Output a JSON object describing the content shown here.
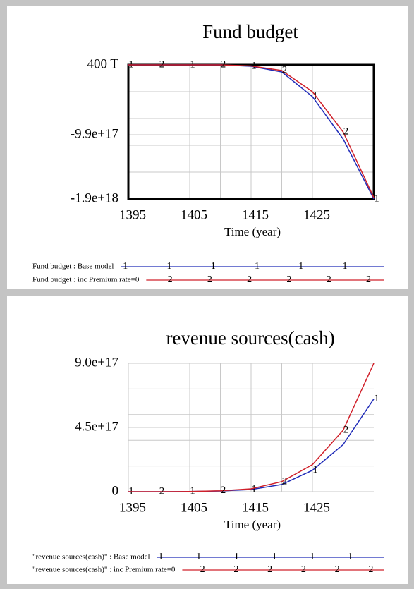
{
  "chart_data": [
    {
      "type": "line",
      "title": "Fund budget",
      "x_label": "Time (year)",
      "x": [
        1395,
        1400,
        1405,
        1410,
        1415,
        1420,
        1425,
        1430,
        1435
      ],
      "xlim": [
        1395,
        1435
      ],
      "xticks": [
        1395,
        1405,
        1415,
        1425
      ],
      "ylim": [
        -1.9e+18,
        400000000000000
      ],
      "yticks": [
        {
          "value": 400000000000000,
          "label": "400 T"
        },
        {
          "value": -9.9e+17,
          "label": "-9.9e+17"
        },
        {
          "value": -1.9e+18,
          "label": "-1.9e+18"
        }
      ],
      "grid": true,
      "frame": true,
      "series": [
        {
          "name": "Fund budget : Base model",
          "marker": "1",
          "color": "#1f2bb8",
          "values": [
            400000000000000,
            400000000000000,
            300000000000000,
            0,
            -20000000000000000,
            -100000000000000000,
            -450000000000000000,
            -1.05e+18,
            -1.9e+18
          ]
        },
        {
          "name": "Fund budget : inc Premium rate=0",
          "marker": "2",
          "color": "#d0202a",
          "values": [
            400000000000000,
            400000000000000,
            300000000000000,
            0,
            -15000000000000000,
            -80000000000000000,
            -380000000000000000,
            -9.5e+17,
            -1.88e+18
          ]
        }
      ]
    },
    {
      "type": "line",
      "title": "revenue sources(cash)",
      "x_label": "Time (year)",
      "x": [
        1395,
        1400,
        1405,
        1410,
        1415,
        1420,
        1425,
        1430,
        1435
      ],
      "xlim": [
        1395,
        1435
      ],
      "xticks": [
        1395,
        1405,
        1415,
        1425
      ],
      "ylim": [
        0,
        9e+17
      ],
      "yticks": [
        {
          "value": 9e+17,
          "label": "9.0e+17"
        },
        {
          "value": 4.5e+17,
          "label": "4.5e+17"
        },
        0
      ],
      "grid": true,
      "frame": false,
      "series": [
        {
          "name": "\"revenue sources(cash)\" : Base model",
          "marker": "1",
          "color": "#1f2bb8",
          "values": [
            0,
            0,
            1000000000000000,
            5000000000000000,
            15000000000000000,
            50000000000000000,
            150000000000000000,
            330000000000000000,
            650000000000000000
          ]
        },
        {
          "name": "\"revenue sources(cash)\" : inc Premium rate=0",
          "marker": "2",
          "color": "#d0202a",
          "values": [
            0,
            0,
            1000000000000000,
            6000000000000000,
            20000000000000000,
            70000000000000000,
            190000000000000000,
            430000000000000000,
            9e+17
          ]
        }
      ]
    }
  ]
}
